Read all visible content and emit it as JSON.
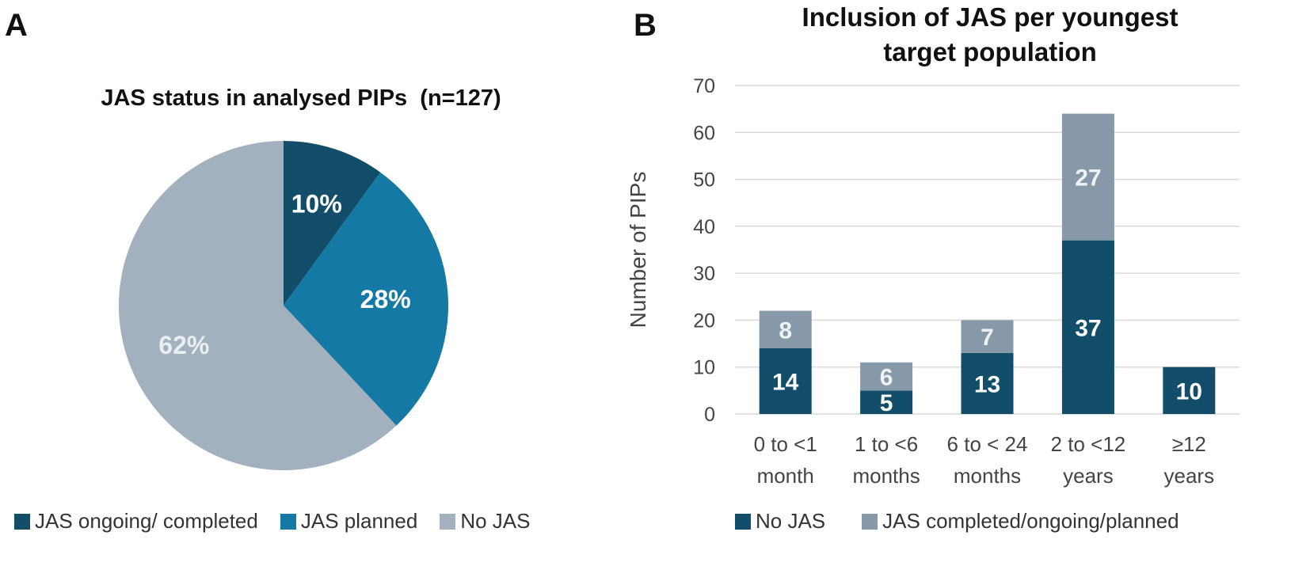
{
  "panels": {
    "a_label": "A",
    "b_label": "B"
  },
  "colors": {
    "dark": "#124e6a",
    "mid": "#1479a5",
    "light": "#a2b1bd",
    "bar_light": "#8799a8"
  },
  "chart_data": [
    {
      "type": "pie",
      "title": "JAS status in analysed PIPs  (n=127)",
      "slices": [
        {
          "label": "JAS ongoing/ completed",
          "value": 10,
          "display": "10%",
          "color": "#124e6a",
          "label_color": "#ffffff"
        },
        {
          "label": "JAS planned",
          "value": 28,
          "display": "28%",
          "color": "#1479a5",
          "label_color": "#ffffff"
        },
        {
          "label": "No JAS",
          "value": 62,
          "display": "62%",
          "color": "#a2b1bd",
          "label_color": "#e9eef2"
        }
      ],
      "legend_position": "bottom"
    },
    {
      "type": "bar",
      "stacked": true,
      "title": "Inclusion of JAS per youngest target population",
      "title_lines": [
        "Inclusion of JAS per youngest",
        "target population"
      ],
      "categories": [
        "0 to <1 month",
        "1 to <6 months",
        "6 to < 24 months",
        "2 to <12 years",
        "≥12 years"
      ],
      "category_lines": [
        [
          "0 to <1",
          "month"
        ],
        [
          "1 to <6",
          "months"
        ],
        [
          "6 to < 24",
          "months"
        ],
        [
          "2 to <12",
          "years"
        ],
        [
          "≥12",
          "years"
        ]
      ],
      "series": [
        {
          "name": "No JAS",
          "values": [
            14,
            5,
            13,
            37,
            10
          ],
          "labels": [
            "14",
            "5",
            "13",
            "37",
            "10"
          ],
          "color": "#124e6a"
        },
        {
          "name": "JAS completed/ongoing/planned",
          "values": [
            8,
            6,
            7,
            27,
            0
          ],
          "labels": [
            "8",
            "6",
            "7",
            "27",
            ""
          ],
          "color": "#8799a8"
        }
      ],
      "ylabel": "Number of PIPs",
      "xlabel": "",
      "ylim": [
        0,
        70
      ],
      "yticks": [
        "0",
        "10",
        "20",
        "30",
        "40",
        "50",
        "60",
        "70"
      ],
      "grid": true,
      "legend_position": "bottom"
    }
  ]
}
